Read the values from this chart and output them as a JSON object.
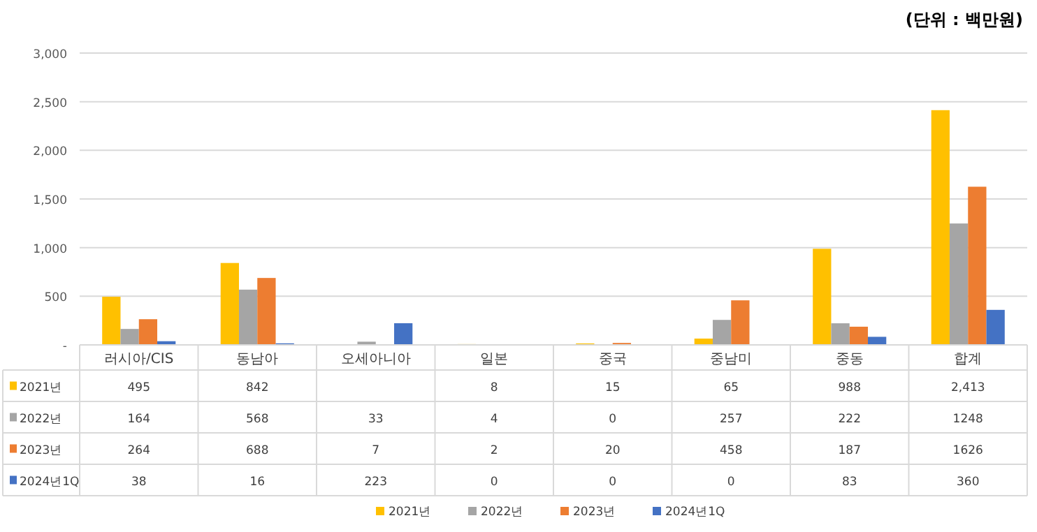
{
  "chart_data": {
    "type": "bar",
    "annotations": [
      "(단위 : 백만원)"
    ],
    "categories": [
      "러시아/CIS",
      "동남아",
      "오세아니아",
      "일본",
      "중국",
      "중남미",
      "중동",
      "합계"
    ],
    "series": [
      {
        "name": "2021년",
        "color": "#ffc000",
        "values": [
          495,
          842,
          null,
          8,
          15,
          65,
          988,
          2413
        ],
        "value_labels": [
          "495",
          "842",
          null,
          "8",
          "15",
          "65",
          "988",
          "2,413"
        ]
      },
      {
        "name": "2022년",
        "color": "#a5a5a5",
        "values": [
          164,
          568,
          33,
          4,
          0,
          257,
          222,
          1248
        ],
        "value_labels": [
          "164",
          "568",
          "33",
          "4",
          "0",
          "257",
          "222",
          "1248"
        ]
      },
      {
        "name": "2023년",
        "color": "#ed7d31",
        "values": [
          264,
          688,
          7,
          2,
          20,
          458,
          187,
          1626
        ],
        "value_labels": [
          "264",
          "688",
          "7",
          "2",
          "20",
          "458",
          "187",
          "1626"
        ]
      },
      {
        "name": "2024년1Q",
        "color": "#4472c4",
        "values": [
          38,
          16,
          223,
          0,
          0,
          0,
          83,
          360
        ],
        "value_labels": [
          "38",
          "16",
          "223",
          "0",
          "0",
          "0",
          "83",
          "360"
        ]
      }
    ],
    "ylim": [
      0,
      3000
    ],
    "yticks": [
      {
        "value": 0,
        "label": "-"
      },
      {
        "value": 500,
        "label": "500"
      },
      {
        "value": 1000,
        "label": "1,000"
      },
      {
        "value": 1500,
        "label": "1,500"
      },
      {
        "value": 2000,
        "label": "2,000"
      },
      {
        "value": 2500,
        "label": "2,500"
      },
      {
        "value": 3000,
        "label": "3,000"
      }
    ],
    "grid": "y",
    "legend": "bottom"
  }
}
